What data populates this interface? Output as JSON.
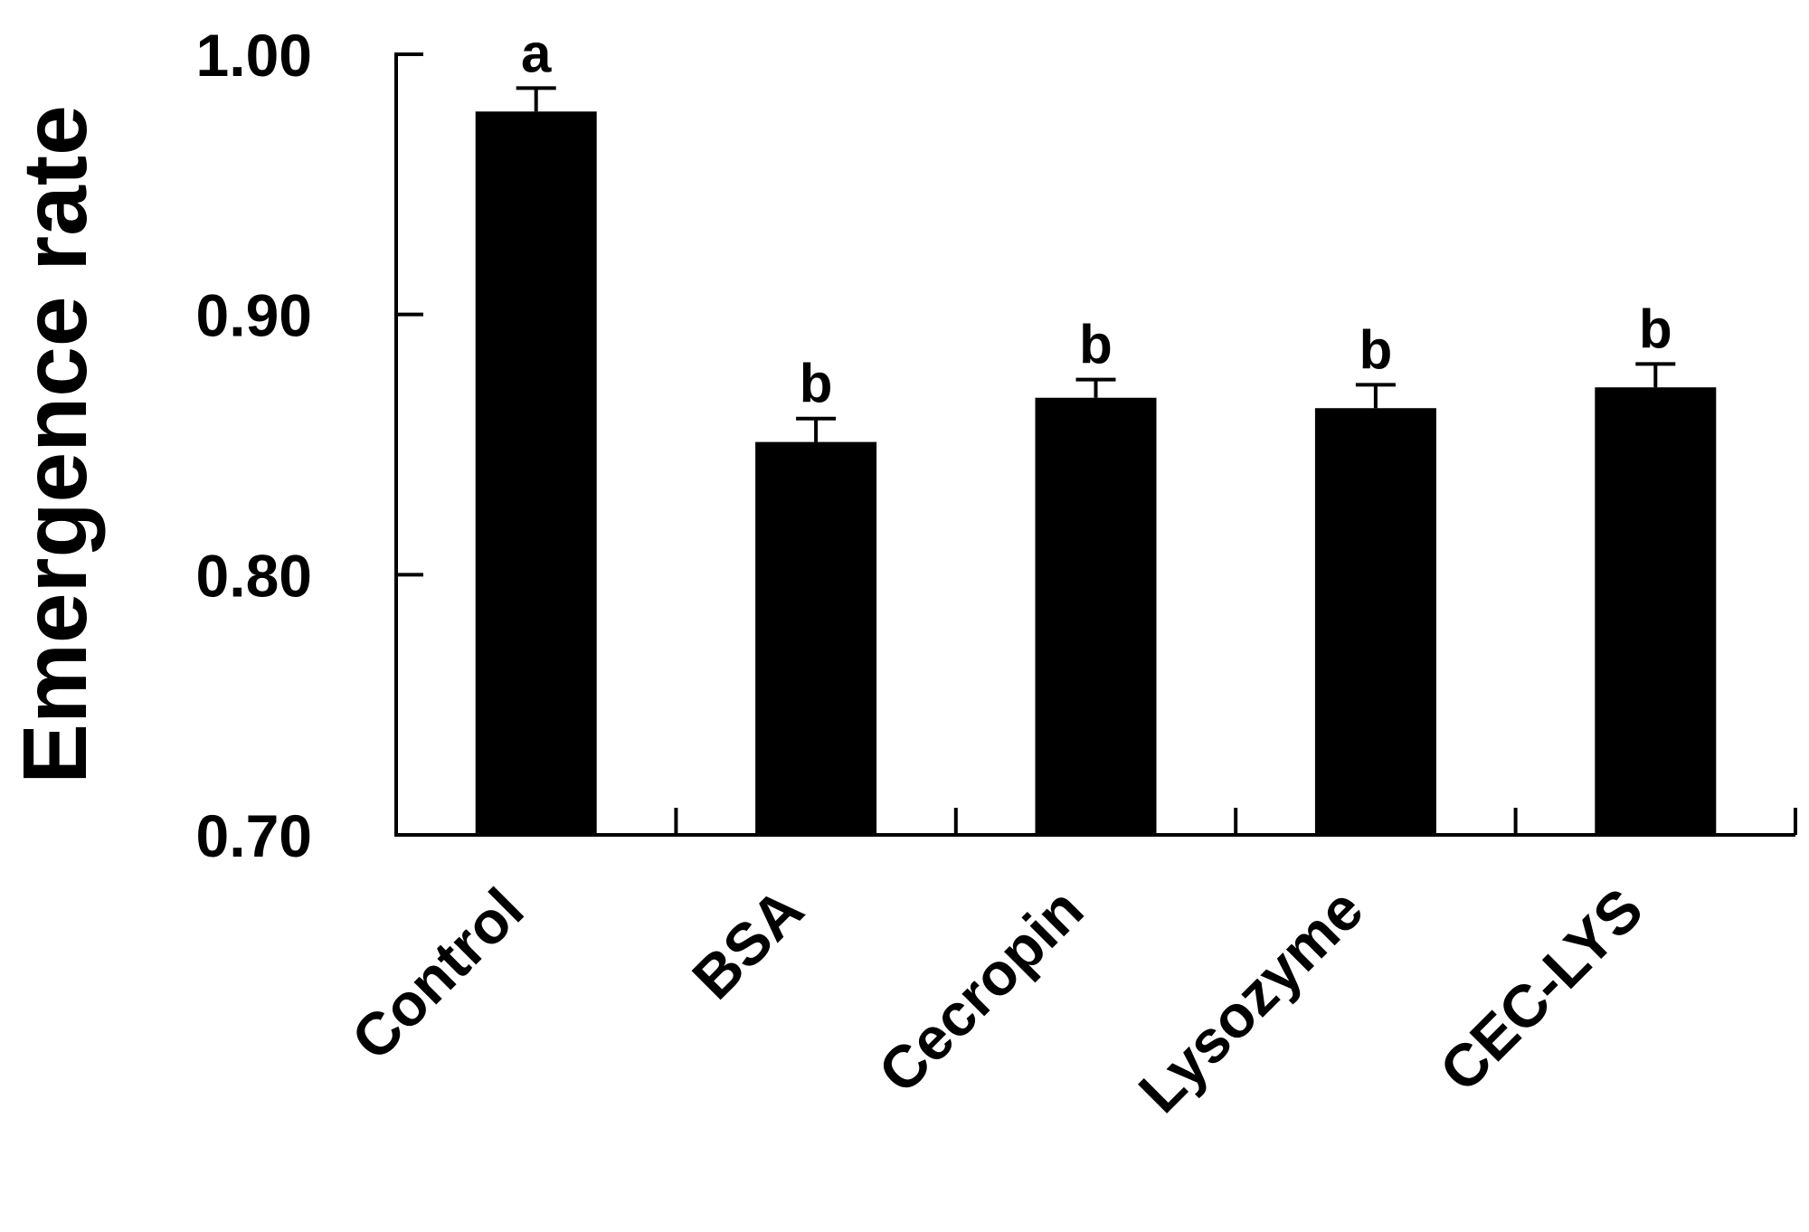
{
  "chart_data": {
    "type": "bar",
    "title": "",
    "xlabel": "",
    "ylabel": "Emergence rate",
    "ylim": [
      0.7,
      1.0
    ],
    "yticks": [
      "0.70",
      "0.80",
      "0.90",
      "1.00"
    ],
    "ytick_values": [
      0.7,
      0.8,
      0.9,
      1.0
    ],
    "categories": [
      "Control",
      "BSA",
      "Cecropin",
      "Lysozyme",
      "CEC-LYS"
    ],
    "values": [
      0.978,
      0.851,
      0.868,
      0.864,
      0.872
    ],
    "errors": [
      0.009,
      0.009,
      0.007,
      0.009,
      0.009
    ],
    "significance_letters": [
      "a",
      "b",
      "b",
      "b",
      "b"
    ],
    "grid": false,
    "legend": "none",
    "bar_color": "#000000"
  }
}
